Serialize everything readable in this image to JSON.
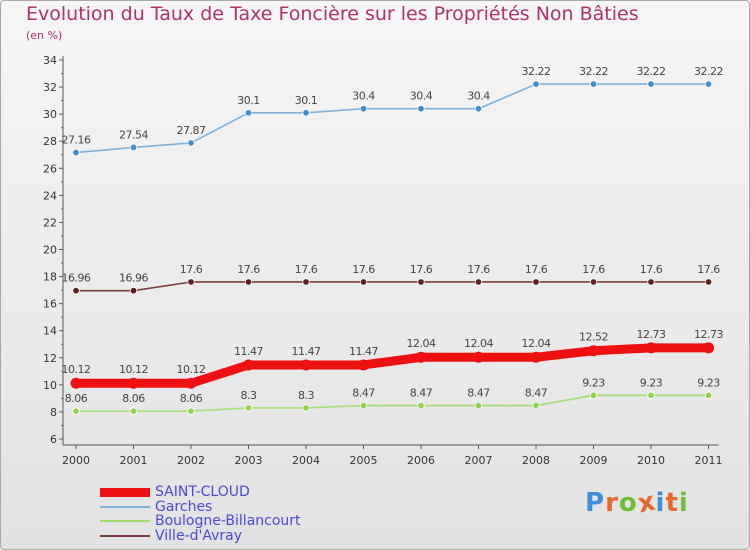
{
  "title": "Evolution du Taux de Taxe Foncière sur les Propriétés Non Bâties",
  "unit": "(en %)",
  "logo": {
    "text": "Proxiti",
    "letter_colors": [
      "#3d8fd9",
      "#e8682a",
      "#6cbf3a",
      "#e8682a",
      "#3d8fd9",
      "#e8682a",
      "#6cbf3a"
    ]
  },
  "chart_data": {
    "type": "line",
    "categories": [
      "2000",
      "2001",
      "2002",
      "2003",
      "2004",
      "2005",
      "2006",
      "2007",
      "2008",
      "2009",
      "2010",
      "2011"
    ],
    "ylim": [
      6,
      34
    ],
    "yticks": [
      "6",
      "8",
      "10",
      "12",
      "14",
      "16",
      "18",
      "20",
      "22",
      "24",
      "26",
      "28",
      "30",
      "32",
      "34"
    ],
    "grid": false,
    "legend_position": "bottom-left",
    "series": [
      {
        "name": "SAINT-CLOUD",
        "color": "#ee1111",
        "marker_color": "#ee1111",
        "emphasis": true,
        "values": [
          10.12,
          10.12,
          10.12,
          11.47,
          11.47,
          11.47,
          12.04,
          12.04,
          12.04,
          12.52,
          12.73,
          12.73
        ],
        "labels": [
          "10.12",
          "10.12",
          "10.12",
          "11.47",
          "11.47",
          "11.47",
          "12.04",
          "12.04",
          "12.04",
          "12.52",
          "12.73",
          "12.73"
        ]
      },
      {
        "name": "Garches",
        "color": "#7fb1dc",
        "marker_color": "#3f8fcf",
        "emphasis": false,
        "values": [
          27.16,
          27.54,
          27.87,
          30.1,
          30.1,
          30.4,
          30.4,
          30.4,
          32.22,
          32.22,
          32.22,
          32.22
        ],
        "labels": [
          "27.16",
          "27.54",
          "27.87",
          "30.1",
          "30.1",
          "30.4",
          "30.4",
          "30.4",
          "32.22",
          "32.22",
          "32.22",
          "32.22"
        ]
      },
      {
        "name": "Boulogne-Billancourt",
        "color": "#a3de6c",
        "marker_color": "#8fd24a",
        "emphasis": false,
        "values": [
          8.06,
          8.06,
          8.06,
          8.3,
          8.3,
          8.47,
          8.47,
          8.47,
          8.47,
          9.23,
          9.23,
          9.23
        ],
        "labels": [
          "8.06",
          "8.06",
          "8.06",
          "8.3",
          "8.3",
          "8.47",
          "8.47",
          "8.47",
          "8.47",
          "9.23",
          "9.23",
          "9.23"
        ]
      },
      {
        "name": "Ville-d'Avray",
        "color": "#7a3c3c",
        "marker_color": "#5e1f1f",
        "emphasis": false,
        "values": [
          16.96,
          16.96,
          17.6,
          17.6,
          17.6,
          17.6,
          17.6,
          17.6,
          17.6,
          17.6,
          17.6,
          17.6
        ],
        "labels": [
          "16.96",
          "16.96",
          "17.6",
          "17.6",
          "17.6",
          "17.6",
          "17.6",
          "17.6",
          "17.6",
          "17.6",
          "17.6",
          "17.6"
        ]
      }
    ]
  }
}
